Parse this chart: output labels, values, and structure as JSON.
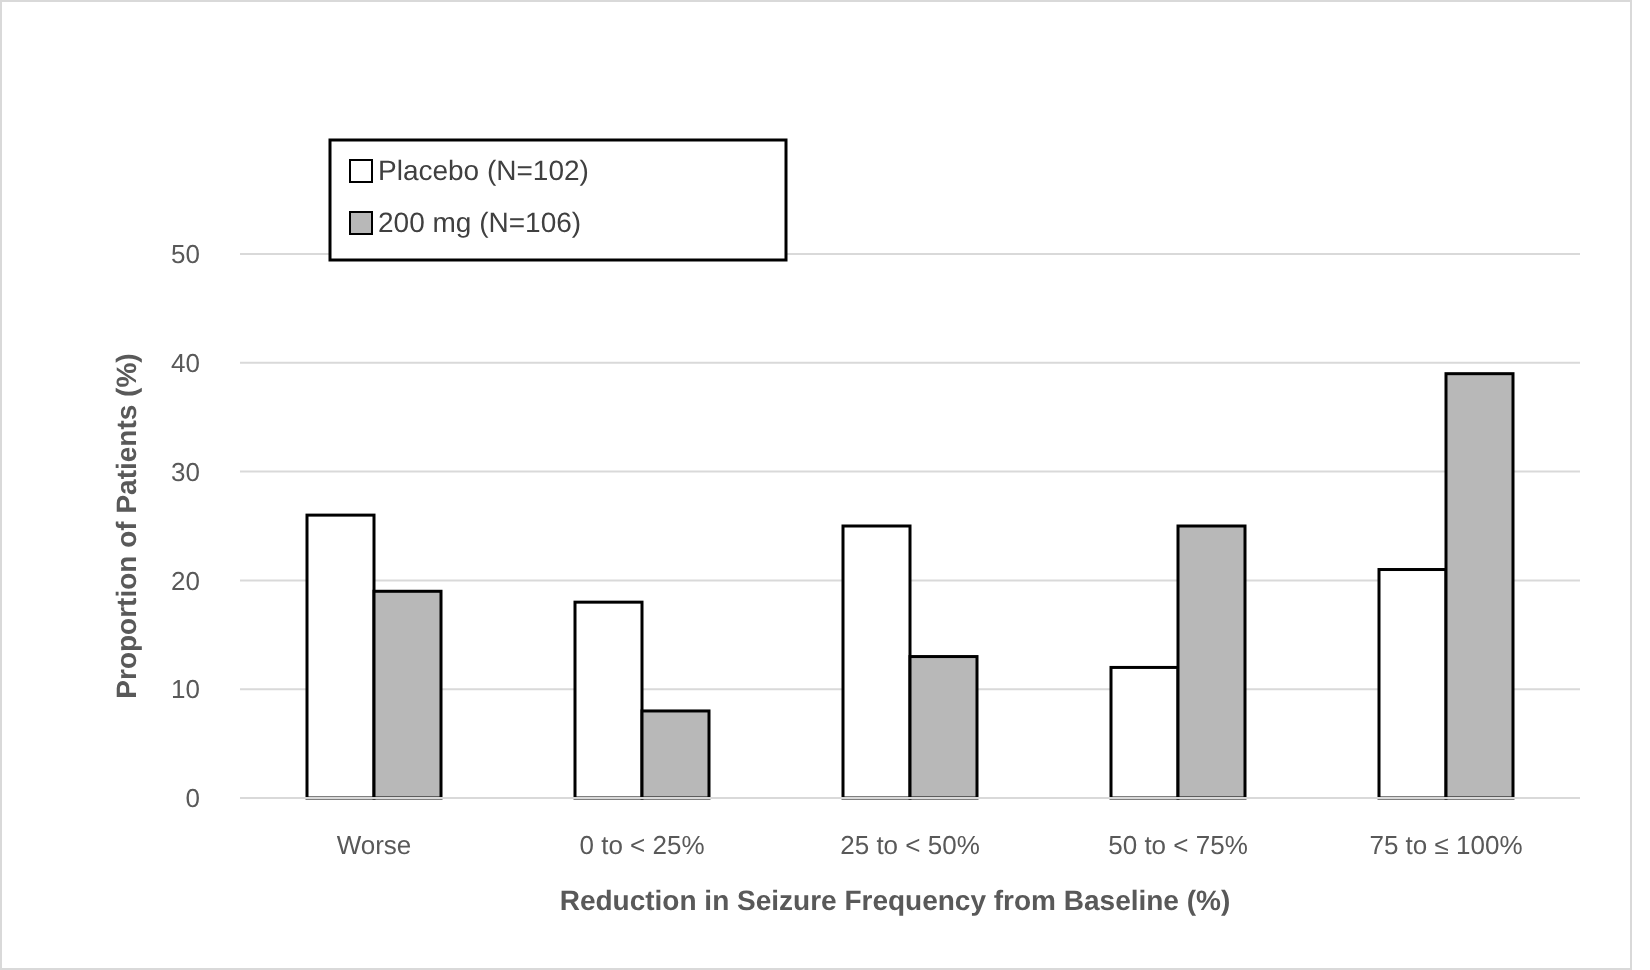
{
  "chart_data": {
    "type": "bar",
    "xlabel": "Reduction in Seizure Frequency from Baseline (%)",
    "ylabel": "Proportion of Patients (%)",
    "categories": [
      "Worse",
      "0 to < 25%",
      "25 to < 50%",
      "50 to < 75%",
      "75 to ≤ 100%"
    ],
    "series": [
      {
        "name": "Placebo (N=102)",
        "color": "#ffffff",
        "values": [
          26,
          18,
          25,
          12,
          21
        ]
      },
      {
        "name": "200 mg (N=106)",
        "color": "#b8b8b8",
        "values": [
          19,
          8,
          13,
          25,
          39
        ]
      }
    ],
    "ylim": [
      0,
      50
    ],
    "yticks": [
      0,
      10,
      20,
      30,
      40,
      50
    ],
    "grid": "y",
    "legend": "top left"
  }
}
